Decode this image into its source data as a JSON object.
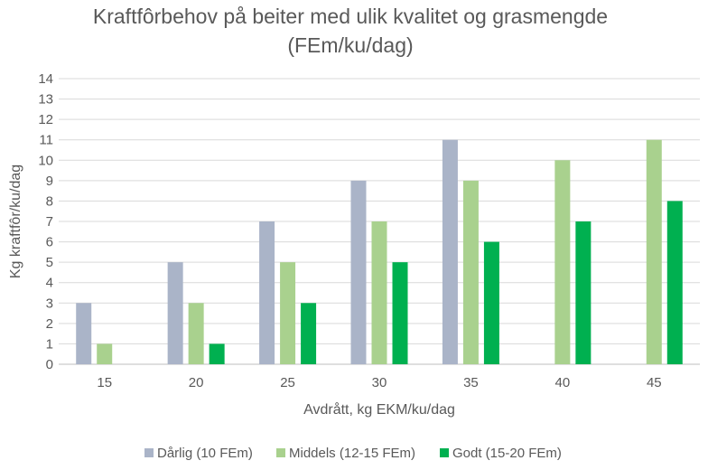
{
  "chart_data": {
    "type": "bar",
    "title": "Kraftfôrbehov på beiter med ulik kvalitet og grasmengde",
    "subtitle": "(FEm/ku/dag)",
    "xlabel": "Avdrått, kg EKM/ku/dag",
    "ylabel": "Kg kraftfôr/ku/dag",
    "ylim": [
      0,
      14
    ],
    "yticks": [
      "0",
      "1",
      "2",
      "3",
      "4",
      "5",
      "6",
      "7",
      "8",
      "9",
      "10",
      "11",
      "12",
      "13",
      "14"
    ],
    "grid": true,
    "legend_position": "bottom",
    "categories": [
      "15",
      "20",
      "25",
      "30",
      "35",
      "40",
      "45"
    ],
    "series": [
      {
        "name": "Dårlig (10 FEm)",
        "color": "#aab4c8",
        "values": [
          3,
          5,
          7,
          9,
          11,
          null,
          null
        ]
      },
      {
        "name": "Middels (12-15 FEm)",
        "color": "#a9d18e",
        "values": [
          1,
          3,
          5,
          7,
          9,
          10,
          11
        ]
      },
      {
        "name": "Godt (15-20 FEm)",
        "color": "#00b050",
        "values": [
          null,
          1,
          3,
          5,
          6,
          7,
          8
        ]
      }
    ]
  }
}
